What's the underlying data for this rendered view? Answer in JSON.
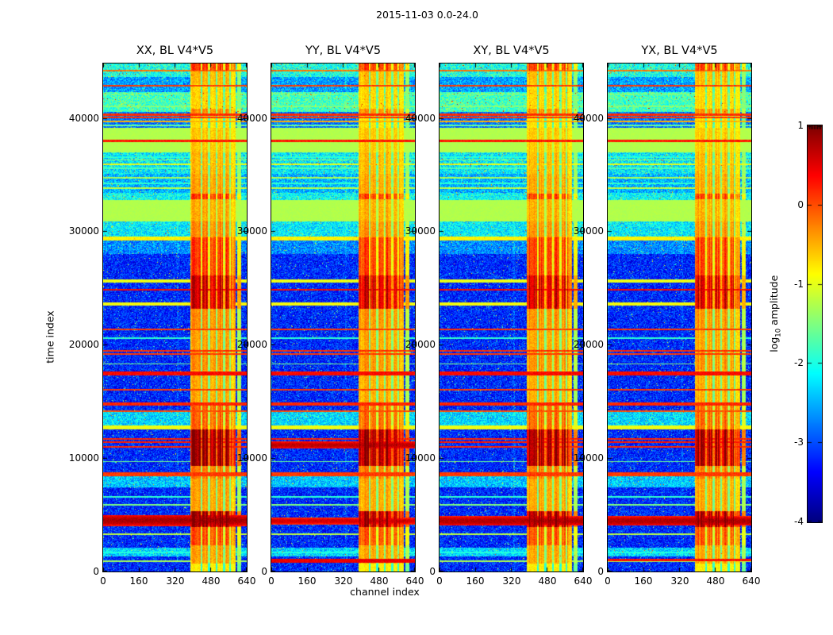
{
  "chart_data": {
    "type": "heatmap",
    "title": "2015-11-03 0.0-24.0",
    "xlabel": "channel index",
    "ylabel": "time index",
    "x_range": [
      0,
      640
    ],
    "y_range": [
      0,
      44800
    ],
    "x_ticks": [
      0,
      160,
      320,
      480,
      640
    ],
    "y_ticks": [
      0,
      10000,
      20000,
      30000,
      40000
    ],
    "grid": false,
    "colormap": "jet",
    "panels": [
      {
        "label": "XX, BL V4*V5",
        "seed": 11,
        "gain": 1.0,
        "extra_lines": [
          [
            4500,
            0.8,
            480
          ]
        ]
      },
      {
        "label": "YY, BL V4*V5",
        "seed": 23,
        "gain": 1.05,
        "extra_lines": [
          [
            11150,
            0.7,
            330
          ],
          [
            4450,
            0.6,
            300
          ],
          [
            950,
            0.45,
            160
          ]
        ]
      },
      {
        "label": "XY, BL V4*V5",
        "seed": 37,
        "gain": 1.0,
        "extra_lines": [
          [
            4450,
            0.75,
            420
          ]
        ]
      },
      {
        "label": "YX, BL V4*V5",
        "seed": 51,
        "gain": 0.98,
        "extra_lines": [
          [
            4450,
            0.75,
            420
          ],
          [
            1000,
            0.3,
            120
          ]
        ]
      }
    ],
    "colorbar": {
      "label": "log10 amplitude",
      "label_main": "log",
      "label_sub": "10",
      "label_rest": " amplitude",
      "ticks": [
        1,
        0,
        -1,
        -2,
        -3,
        -4
      ],
      "range": [
        -4,
        1
      ]
    },
    "features": {
      "t_max": 44800,
      "n_channels": 640,
      "background": {
        "v": -3.2,
        "n": 0.5
      },
      "bands": [
        [
          43600,
          44800,
          -2.0,
          0.55
        ],
        [
          42300,
          43600,
          -2.6,
          0.5
        ],
        [
          40500,
          42300,
          -1.8,
          0.5
        ],
        [
          39100,
          40500,
          -2.8,
          0.45
        ],
        [
          36950,
          39100,
          -1.25,
          0.05
        ],
        [
          35100,
          36950,
          -2.2,
          0.55
        ],
        [
          33400,
          35100,
          -2.5,
          0.5
        ],
        [
          32750,
          33400,
          -2.1,
          0.5
        ],
        [
          30900,
          32750,
          -1.25,
          0.05
        ],
        [
          29450,
          30900,
          -2.2,
          0.5
        ],
        [
          28000,
          29450,
          -2.7,
          0.5
        ],
        [
          12900,
          14100,
          -2.3,
          0.5
        ],
        [
          7400,
          8400,
          -2.4,
          0.5
        ],
        [
          1300,
          2100,
          -2.3,
          0.5
        ]
      ],
      "lines": [
        [
          44150,
          -0.2,
          80
        ],
        [
          42850,
          0.1,
          90
        ],
        [
          42100,
          -1.4,
          60
        ],
        [
          41000,
          -1.5,
          60
        ],
        [
          40300,
          0.15,
          90
        ],
        [
          40060,
          0.1,
          80
        ],
        [
          39700,
          -0.5,
          60
        ],
        [
          39350,
          -1.6,
          60
        ],
        [
          37980,
          0.25,
          90
        ],
        [
          36550,
          -2.0,
          60
        ],
        [
          36300,
          -1.4,
          60
        ],
        [
          35900,
          -1.0,
          60
        ],
        [
          35550,
          -1.8,
          60
        ],
        [
          34700,
          -1.3,
          60
        ],
        [
          34250,
          -1.9,
          60
        ],
        [
          33800,
          -1.2,
          60
        ],
        [
          29350,
          -0.85,
          170
        ],
        [
          25650,
          -0.95,
          140
        ],
        [
          24850,
          0.35,
          100
        ],
        [
          23590,
          -0.9,
          170
        ],
        [
          21360,
          0.1,
          70
        ],
        [
          20600,
          -1.9,
          60
        ],
        [
          19470,
          0.15,
          70
        ],
        [
          19200,
          0.1,
          70
        ],
        [
          18300,
          -1.5,
          60
        ],
        [
          17450,
          0.35,
          160
        ],
        [
          16050,
          0.1,
          70
        ],
        [
          14760,
          0.2,
          120
        ],
        [
          14170,
          0.0,
          70
        ],
        [
          12700,
          -0.95,
          150
        ],
        [
          11720,
          0.2,
          70
        ],
        [
          11380,
          0.25,
          70
        ],
        [
          10960,
          0.2,
          70
        ],
        [
          9700,
          -1.6,
          60
        ],
        [
          8550,
          0.1,
          170
        ],
        [
          6600,
          -1.9,
          60
        ],
        [
          5900,
          -1.5,
          60
        ],
        [
          3300,
          -1.2,
          60
        ],
        [
          1700,
          -2.0,
          60
        ],
        [
          900,
          -1.3,
          60
        ]
      ],
      "rfi_band": {
        "c0": 390,
        "c1": 590,
        "gaps": [
          [
            436,
            442
          ],
          [
            468,
            476
          ],
          [
            502,
            508
          ],
          [
            536,
            544
          ],
          [
            562,
            571
          ]
        ],
        "extra_column": [
          600,
          614
        ],
        "envelope": [
          [
            44200,
            44800,
            0.55
          ],
          [
            43000,
            44200,
            0.25
          ],
          [
            40800,
            43000,
            0.18
          ],
          [
            40200,
            40800,
            0.35
          ],
          [
            39100,
            40200,
            0.15
          ],
          [
            36950,
            39100,
            0.22
          ],
          [
            35100,
            36950,
            0.25
          ],
          [
            33350,
            35100,
            0.3
          ],
          [
            32800,
            33350,
            0.55
          ],
          [
            30900,
            32800,
            0.28
          ],
          [
            29450,
            30900,
            0.35
          ],
          [
            27700,
            29450,
            0.55
          ],
          [
            26100,
            27700,
            0.55
          ],
          [
            23200,
            26100,
            0.78
          ],
          [
            21500,
            23200,
            0.35
          ],
          [
            19600,
            21500,
            0.3
          ],
          [
            17800,
            19600,
            0.35
          ],
          [
            14900,
            17800,
            0.28
          ],
          [
            12500,
            14900,
            0.45
          ],
          [
            9300,
            12500,
            0.92
          ],
          [
            8200,
            9300,
            0.4
          ],
          [
            5300,
            8200,
            0.3
          ],
          [
            3900,
            5300,
            0.9
          ],
          [
            2300,
            3900,
            0.5
          ],
          [
            700,
            2300,
            0.3
          ],
          [
            0,
            700,
            0.12
          ]
        ]
      },
      "column_bumps": [
        [
          0,
          2,
          0.25
        ],
        [
          330,
          334,
          0.22
        ]
      ]
    }
  }
}
